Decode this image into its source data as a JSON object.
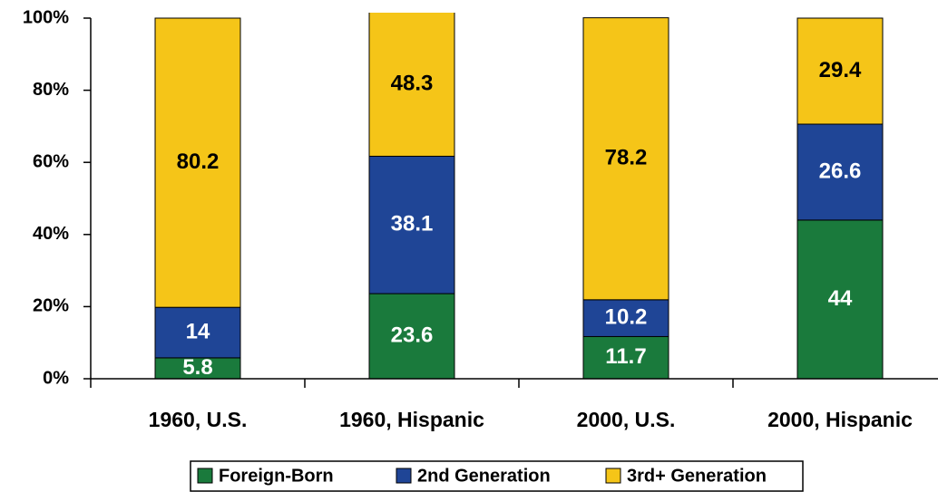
{
  "chart_data": {
    "type": "stacked_bar",
    "categories": [
      "1960, U.S.",
      "1960, Hispanic",
      "2000, U.S.",
      "2000, Hispanic"
    ],
    "series": [
      {
        "name": "Foreign-Born",
        "color": "#1a7a3c",
        "label_color": "#ffffff",
        "values": [
          5.8,
          23.6,
          11.7,
          44
        ]
      },
      {
        "name": "2nd Generation",
        "color": "#1f4596",
        "label_color": "#ffffff",
        "values": [
          14,
          38.1,
          10.2,
          26.6
        ]
      },
      {
        "name": "3rd+ Generation",
        "color": "#f5c518",
        "label_color": "#000000",
        "values": [
          80.2,
          48.3,
          78.2,
          29.4
        ]
      }
    ],
    "ylim": [
      0,
      100
    ],
    "yticks": [
      {
        "value": 0,
        "label": "0%"
      },
      {
        "value": 20,
        "label": "20%"
      },
      {
        "value": 40,
        "label": "40%"
      },
      {
        "value": 60,
        "label": "60%"
      },
      {
        "value": 80,
        "label": "80%"
      },
      {
        "value": 100,
        "label": "100%"
      }
    ],
    "legend": "bottom"
  }
}
